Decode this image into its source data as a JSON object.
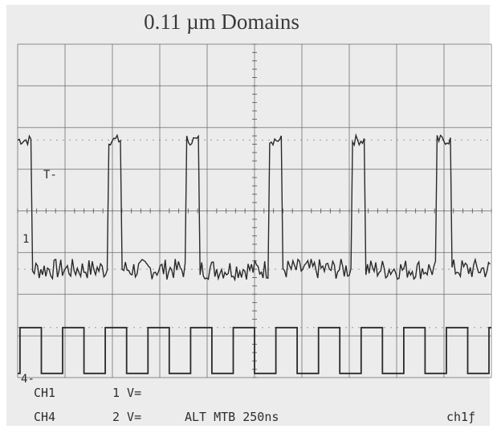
{
  "title": "0.11 µm Domains",
  "markers": {
    "trigger": "T-",
    "ch1_ground": "1",
    "ch4_ground": "4"
  },
  "readouts": {
    "row1": {
      "channel": "CH1",
      "setting": "1 V=",
      "extra": ""
    },
    "row2": {
      "channel": "CH4",
      "setting": "2 V=",
      "mode": "ALT MTB 250ns",
      "trigger_source": "ch1ƒ"
    }
  },
  "colors": {
    "screen_bg": "#ececec",
    "grid": "#6a6a6a",
    "trace": "#2a2a2a"
  },
  "chart_data": {
    "type": "line",
    "title": "0.11 µm Domains",
    "xlabel": "",
    "ylabel": "",
    "grid": true,
    "divisions": {
      "x": 10,
      "y": 8
    },
    "xlim": [
      0,
      10
    ],
    "ylim": [
      0,
      8
    ],
    "series": [
      {
        "channel": "CH1",
        "pulse_starts_div": [
          0.0,
          1.9,
          3.55,
          5.3,
          7.05,
          8.85
        ],
        "pulse_width_div": 0.3,
        "high_level_div": 5.7,
        "baseline_div": 2.6,
        "noise_div": 0.25
      },
      {
        "channel": "CH4",
        "period_div": 0.9,
        "first_rise_div": 0.05,
        "high_level_div": 1.2,
        "low_level_div": 0.1
      }
    ]
  }
}
